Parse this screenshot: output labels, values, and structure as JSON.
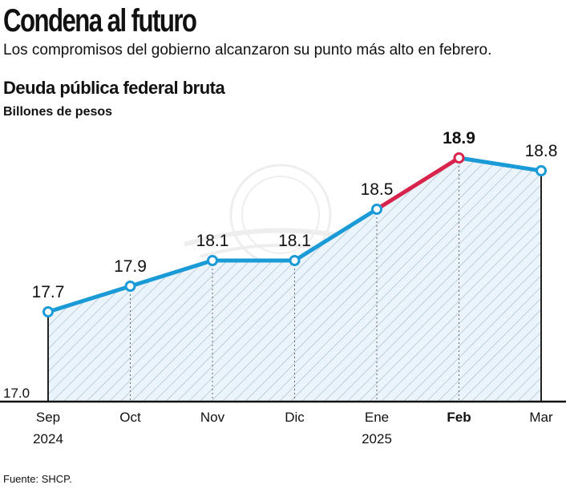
{
  "header": {
    "headline": "Condena al futuro",
    "subhead": "Los compromisos del gobierno alcanzaron su punto más alto en febrero."
  },
  "chart_data": {
    "type": "line",
    "title": "Deuda pública federal bruta",
    "ylabel": "Billones de pesos",
    "xlabel": "",
    "categories": [
      "Sep\n2024",
      "Oct",
      "Nov",
      "Dic",
      "Ene\n2025",
      "Feb",
      "Mar"
    ],
    "values": [
      17.7,
      17.9,
      18.1,
      18.1,
      18.5,
      18.9,
      18.8
    ],
    "data_labels": [
      "17.7",
      "17.9",
      "18.1",
      "18.1",
      "18.5",
      "18.9",
      "18.8"
    ],
    "baseline_label": "17.0",
    "ylim": [
      17.0,
      18.9
    ],
    "highlight_index": 5,
    "grid": false,
    "area_fill": "hatched",
    "colors": {
      "line": "#1a9ad6",
      "highlight": "#d8234b",
      "hatch": "#9fb8c8",
      "area_bg": "#eaf4fa",
      "axis": "#111111"
    }
  },
  "source": "Fuente: SHCP."
}
